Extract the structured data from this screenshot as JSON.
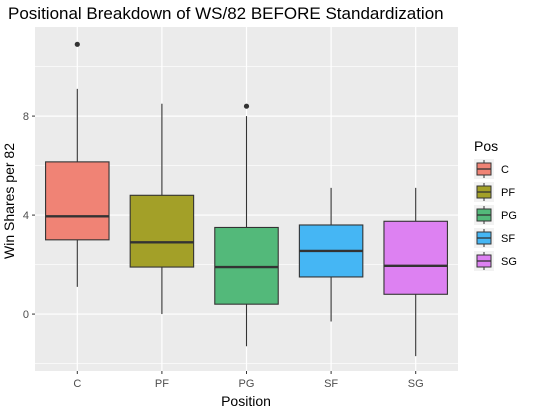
{
  "chart_data": {
    "type": "boxplot",
    "title": "Positional Breakdown of WS/82 BEFORE Standardization",
    "xlabel": "Position",
    "ylabel": "Win Shares per 82",
    "categories": [
      "C",
      "PF",
      "PG",
      "SF",
      "SG"
    ],
    "y_ticks": [
      0,
      4,
      8
    ],
    "ylim": [
      -2.3,
      11.6
    ],
    "grid": true,
    "legend": {
      "title": "Pos",
      "placement": "right",
      "entries": [
        "C",
        "PF",
        "PG",
        "SF",
        "SG"
      ]
    },
    "colors": {
      "C": "#F08375",
      "PF": "#A3A028",
      "PG": "#53B97A",
      "SF": "#45B6F4",
      "SG": "#DD81F2",
      "panel_bg": "#EBEBEB",
      "grid": "#FFFFFF",
      "box_outline": "#333333"
    },
    "boxes": [
      {
        "category": "C",
        "whisker_low": 1.1,
        "q1": 3.0,
        "median": 3.95,
        "q3": 6.15,
        "whisker_high": 9.1,
        "outliers": [
          10.9
        ]
      },
      {
        "category": "PF",
        "whisker_low": 0.0,
        "q1": 1.9,
        "median": 2.9,
        "q3": 4.8,
        "whisker_high": 8.5,
        "outliers": []
      },
      {
        "category": "PG",
        "whisker_low": -1.3,
        "q1": 0.4,
        "median": 1.9,
        "q3": 3.5,
        "whisker_high": 8.0,
        "outliers": [
          8.4
        ]
      },
      {
        "category": "SF",
        "whisker_low": -0.3,
        "q1": 1.5,
        "median": 2.55,
        "q3": 3.6,
        "whisker_high": 5.1,
        "outliers": []
      },
      {
        "category": "SG",
        "whisker_low": -1.7,
        "q1": 0.8,
        "median": 1.95,
        "q3": 3.75,
        "whisker_high": 5.1,
        "outliers": []
      }
    ]
  }
}
